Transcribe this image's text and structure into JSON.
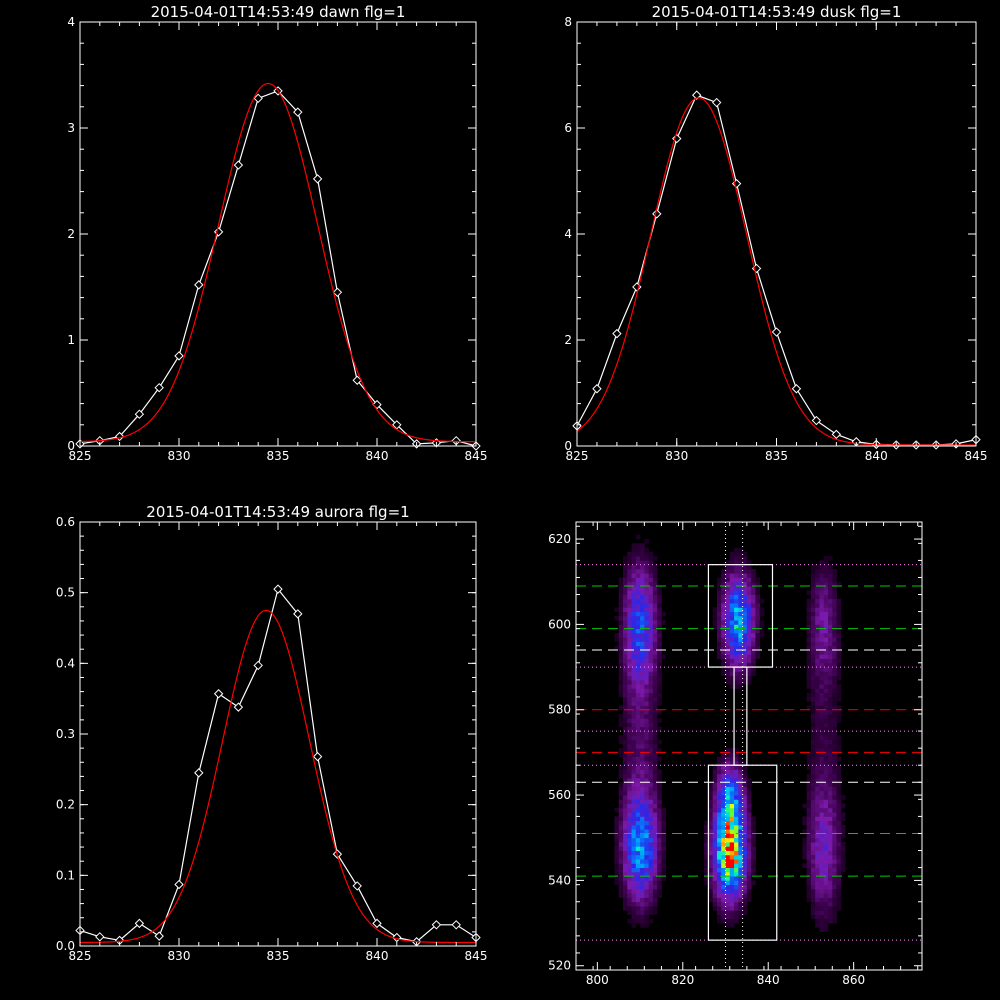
{
  "chart_data": [
    {
      "type": "line",
      "title": "2015-04-01T14:53:49 dawn flg=1",
      "xlim": [
        825,
        845
      ],
      "ylim": [
        0,
        4
      ],
      "x_ticks": [
        "825",
        "830",
        "835",
        "840",
        "845"
      ],
      "y_ticks": [
        "0",
        "1",
        "2",
        "3",
        "4"
      ],
      "series": [
        {
          "style": "white line with diamond markers",
          "color": "#ffffff",
          "x": [
            825,
            826,
            827,
            828,
            829,
            830,
            831,
            832,
            833,
            834,
            835,
            836,
            837,
            838,
            839,
            840,
            841,
            842,
            843,
            844,
            845
          ],
          "y": [
            0.02,
            0.05,
            0.09,
            0.3,
            0.55,
            0.85,
            1.52,
            2.02,
            2.65,
            3.28,
            3.35,
            3.15,
            2.52,
            1.45,
            0.62,
            0.39,
            0.2,
            0.02,
            0.03,
            0.05,
            0.0
          ]
        },
        {
          "style": "red fit curve",
          "color": "#ff0000",
          "fit": {
            "amplitude": 3.38,
            "center": 834.5,
            "sigma": 2.5,
            "baseline": 0.04
          }
        }
      ]
    },
    {
      "type": "line",
      "title": "2015-04-01T14:53:49 dusk flg=1",
      "xlim": [
        825,
        845
      ],
      "ylim": [
        0,
        8
      ],
      "x_ticks": [
        "825",
        "830",
        "835",
        "840",
        "845"
      ],
      "y_ticks": [
        "0",
        "2",
        "4",
        "6",
        "8"
      ],
      "series": [
        {
          "style": "white line with diamond markers",
          "color": "#ffffff",
          "x": [
            825,
            826,
            827,
            828,
            829,
            830,
            831,
            832,
            833,
            834,
            835,
            836,
            837,
            838,
            839,
            840,
            841,
            842,
            843,
            844,
            845
          ],
          "y": [
            0.38,
            1.08,
            2.12,
            3.0,
            4.38,
            5.8,
            6.62,
            6.48,
            4.95,
            3.35,
            2.15,
            1.08,
            0.48,
            0.22,
            0.08,
            0.03,
            0.02,
            0.02,
            0.02,
            0.04,
            0.12
          ]
        },
        {
          "style": "red fit curve",
          "color": "#ff0000",
          "fit": {
            "amplitude": 6.55,
            "center": 831.1,
            "sigma": 2.4,
            "baseline": 0.02
          }
        }
      ]
    },
    {
      "type": "line",
      "title": "2015-04-01T14:53:49 aurora flg=1",
      "xlim": [
        825,
        845
      ],
      "ylim": [
        0,
        0.6
      ],
      "x_ticks": [
        "825",
        "830",
        "835",
        "840",
        "845"
      ],
      "y_ticks": [
        "0.0",
        "0.1",
        "0.2",
        "0.3",
        "0.4",
        "0.5",
        "0.6"
      ],
      "series": [
        {
          "style": "white line with diamond markers",
          "color": "#ffffff",
          "x": [
            825,
            826,
            827,
            828,
            829,
            830,
            831,
            832,
            833,
            834,
            835,
            836,
            837,
            838,
            839,
            840,
            841,
            842,
            843,
            844,
            845
          ],
          "y": [
            0.022,
            0.013,
            0.008,
            0.032,
            0.014,
            0.087,
            0.245,
            0.357,
            0.338,
            0.397,
            0.505,
            0.47,
            0.268,
            0.13,
            0.085,
            0.032,
            0.012,
            0.006,
            0.03,
            0.03,
            0.012
          ]
        },
        {
          "style": "red fit curve",
          "color": "#ff0000",
          "fit": {
            "amplitude": 0.47,
            "center": 834.4,
            "sigma": 2.2,
            "baseline": 0.005
          }
        }
      ]
    },
    {
      "type": "heatmap",
      "xlim": [
        795,
        876
      ],
      "ylim": [
        519,
        624
      ],
      "x_ticks": [
        "800",
        "820",
        "840",
        "860"
      ],
      "y_ticks": [
        "520",
        "540",
        "560",
        "580",
        "600",
        "620"
      ],
      "colormap": "rainbow (purple-blue-cyan-green-yellow-red)",
      "blobs": [
        {
          "x": 810,
          "y": 548,
          "sx": 2.6,
          "sy": 8,
          "peak": 0.55
        },
        {
          "x": 810,
          "y": 600,
          "sx": 2.4,
          "sy": 9,
          "peak": 0.4
        },
        {
          "x": 831,
          "y": 547,
          "sx": 2.4,
          "sy": 7,
          "peak": 1.0
        },
        {
          "x": 831,
          "y": 560,
          "sx": 2.0,
          "sy": 5,
          "peak": 0.45
        },
        {
          "x": 833,
          "y": 601,
          "sx": 2.4,
          "sy": 7,
          "peak": 0.6
        },
        {
          "x": 853,
          "y": 547,
          "sx": 2.4,
          "sy": 10,
          "peak": 0.25
        },
        {
          "x": 853,
          "y": 600,
          "sx": 2.2,
          "sy": 9,
          "peak": 0.18
        },
        {
          "x": 810,
          "y": 575,
          "sx": 3.0,
          "sy": 18,
          "peak": 0.12
        },
        {
          "x": 853,
          "y": 575,
          "sx": 3.0,
          "sy": 18,
          "peak": 0.07
        }
      ],
      "vertical_lines": [
        {
          "x": 830,
          "style": "dotted",
          "color": "#ffffff"
        },
        {
          "x": 834,
          "style": "dotted",
          "color": "#ffffff"
        }
      ],
      "horizontal_lines": [
        {
          "y": 609,
          "style": "dashed",
          "color": "#00c800"
        },
        {
          "y": 599,
          "style": "dashed",
          "color": "#00c800"
        },
        {
          "y": 551,
          "style": "dashed",
          "color": "#00c800"
        },
        {
          "y": 541,
          "style": "dashed",
          "color": "#00c800"
        },
        {
          "y": 594,
          "style": "dashed",
          "color": "#ffffff"
        },
        {
          "y": 563,
          "style": "dashed",
          "color": "#ffffff"
        },
        {
          "y": 580,
          "style": "dashed",
          "color": "#ff0000"
        },
        {
          "y": 570,
          "style": "dashed",
          "color": "#ff0000"
        },
        {
          "y": 614,
          "style": "dotted",
          "color": "#ff8cff"
        },
        {
          "y": 590,
          "style": "dotted",
          "color": "#ff8cff"
        },
        {
          "y": 575,
          "style": "dotted",
          "color": "#ff8cff"
        },
        {
          "y": 567,
          "style": "dotted",
          "color": "#ff8cff"
        },
        {
          "y": 526,
          "style": "dotted",
          "color": "#ff8cff"
        }
      ],
      "outline_boxes": [
        {
          "x0": 826,
          "x1": 841,
          "y0": 590,
          "y1": 614,
          "color": "#ffffff"
        },
        {
          "x0": 826,
          "x1": 842,
          "y0": 526,
          "y1": 567,
          "color": "#ffffff"
        },
        {
          "x0": 832,
          "x1": 835,
          "y0": 567,
          "y1": 590,
          "color": "#ffffff"
        }
      ]
    }
  ]
}
